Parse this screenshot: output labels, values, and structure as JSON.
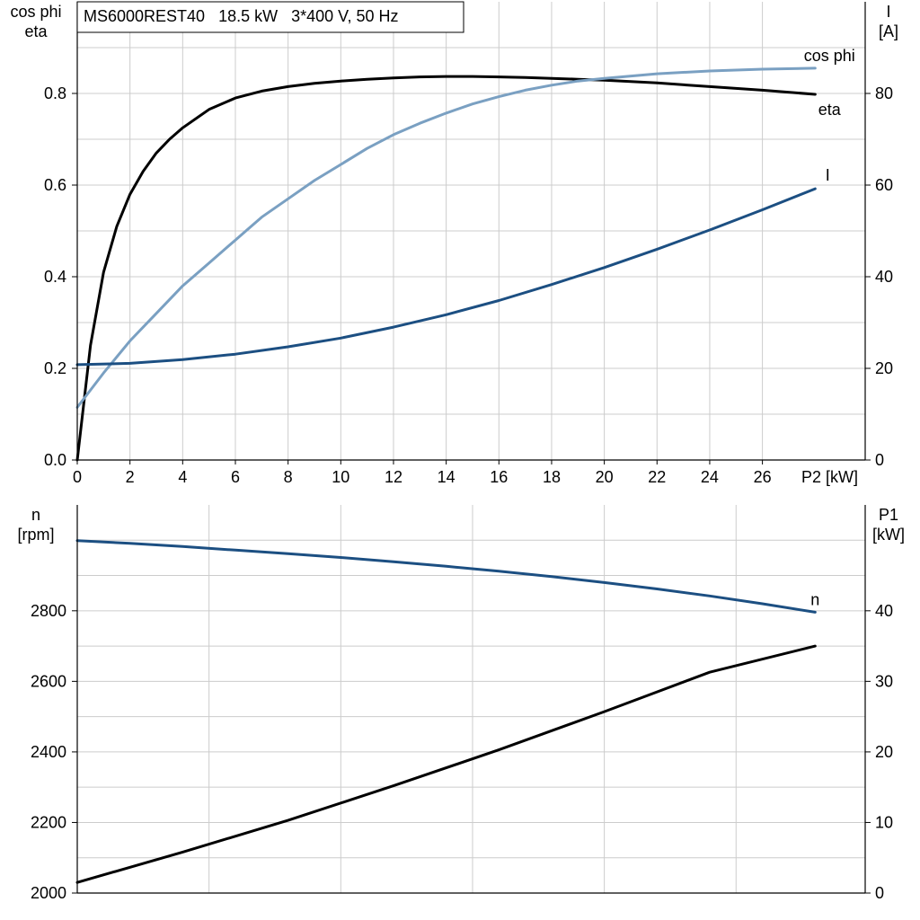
{
  "header": {
    "title": "MS6000REST40   18.5 kW   3*400 V, 50 Hz"
  },
  "colors": {
    "eta": "#000000",
    "cos_phi": "#7aa0c2",
    "current": "#1c4f82",
    "speed": "#1c4f82",
    "p1": "#000000",
    "grid": "#cccccc",
    "axis": "#000000"
  },
  "chart_data": [
    {
      "type": "line",
      "grid": true,
      "x_axis": {
        "range": [
          0,
          29.9
        ],
        "ticks": [
          0,
          2,
          4,
          6,
          8,
          10,
          12,
          14,
          16,
          18,
          20,
          22,
          24,
          26
        ],
        "tick_labels": [
          "0",
          "2",
          "4",
          "6",
          "8",
          "10",
          "12",
          "14",
          "16",
          "18",
          "20",
          "22",
          "24",
          "26"
        ],
        "label": "P2 [kW]"
      },
      "y_left": {
        "label_lines": [
          "cos phi",
          "eta"
        ],
        "range": [
          0,
          1.0
        ],
        "ticks": [
          0,
          0.2,
          0.4,
          0.6,
          0.8
        ],
        "tick_labels": [
          "0.0",
          "0.2",
          "0.4",
          "0.6",
          "0.8"
        ]
      },
      "y_right": {
        "label_lines": [
          "I",
          "[A]"
        ],
        "range": [
          0,
          100
        ],
        "ticks": [
          0,
          20,
          40,
          60,
          80
        ],
        "tick_labels": [
          "0",
          "20",
          "40",
          "60",
          "80"
        ]
      },
      "series": [
        {
          "name": "eta",
          "axis": "left",
          "color_key": "eta",
          "x": [
            0,
            0.5,
            1,
            1.5,
            2,
            2.5,
            3,
            3.5,
            4,
            5,
            6,
            7,
            8,
            9,
            10,
            11,
            12,
            13,
            14,
            15,
            16,
            17,
            18,
            19,
            20,
            22,
            24,
            26,
            28
          ],
          "y": [
            0,
            0.25,
            0.41,
            0.51,
            0.58,
            0.63,
            0.67,
            0.7,
            0.725,
            0.765,
            0.79,
            0.805,
            0.815,
            0.822,
            0.827,
            0.831,
            0.834,
            0.836,
            0.837,
            0.837,
            0.836,
            0.835,
            0.833,
            0.831,
            0.829,
            0.823,
            0.815,
            0.807,
            0.798
          ]
        },
        {
          "name": "cos phi",
          "axis": "left",
          "color_key": "cos_phi",
          "x": [
            0,
            1,
            2,
            3,
            4,
            5,
            6,
            7,
            8,
            9,
            10,
            11,
            12,
            13,
            14,
            15,
            16,
            17,
            18,
            19,
            20,
            22,
            24,
            26,
            28
          ],
          "y": [
            0.115,
            0.19,
            0.26,
            0.32,
            0.38,
            0.43,
            0.48,
            0.53,
            0.57,
            0.61,
            0.645,
            0.68,
            0.71,
            0.735,
            0.757,
            0.777,
            0.793,
            0.807,
            0.818,
            0.827,
            0.833,
            0.843,
            0.849,
            0.853,
            0.855
          ]
        },
        {
          "name": "I",
          "axis": "right",
          "color_key": "current",
          "x": [
            0,
            2,
            4,
            6,
            8,
            10,
            12,
            14,
            16,
            18,
            20,
            22,
            24,
            26,
            28
          ],
          "y": [
            20.8,
            21.1,
            21.9,
            23.1,
            24.7,
            26.6,
            29.0,
            31.7,
            34.8,
            38.3,
            42.0,
            46.0,
            50.2,
            54.6,
            59.2
          ]
        }
      ]
    },
    {
      "type": "line",
      "grid": true,
      "x_axis": {
        "range": [
          0,
          29.9
        ],
        "ticks": [
          5,
          10,
          15,
          20,
          25
        ]
      },
      "y_left": {
        "label_lines": [
          "n",
          "[rpm]"
        ],
        "range": [
          2000,
          3100
        ],
        "ticks": [
          2000,
          2200,
          2400,
          2600,
          2800
        ],
        "tick_labels": [
          "2000",
          "2200",
          "2400",
          "2600",
          "2800"
        ]
      },
      "y_right": {
        "label_lines": [
          "P1",
          "[kW]"
        ],
        "range": [
          0,
          55
        ],
        "ticks": [
          0,
          10,
          20,
          30,
          40
        ],
        "tick_labels": [
          "0",
          "10",
          "20",
          "30",
          "40"
        ]
      },
      "series": [
        {
          "name": "n",
          "axis": "left",
          "color_key": "speed",
          "x": [
            0,
            2,
            4,
            6,
            8,
            10,
            12,
            14,
            16,
            18,
            20,
            22,
            24,
            26,
            28
          ],
          "y": [
            2999,
            2991,
            2982,
            2972,
            2962,
            2951,
            2939,
            2926,
            2912,
            2897,
            2880,
            2862,
            2842,
            2820,
            2796
          ]
        },
        {
          "axis": "right",
          "color_key": "p1",
          "x": [
            0,
            4,
            8,
            12,
            16,
            20,
            24,
            28
          ],
          "y": [
            1.5,
            5.8,
            10.3,
            15.2,
            20.3,
            25.7,
            31.3,
            35.0
          ]
        }
      ]
    }
  ]
}
